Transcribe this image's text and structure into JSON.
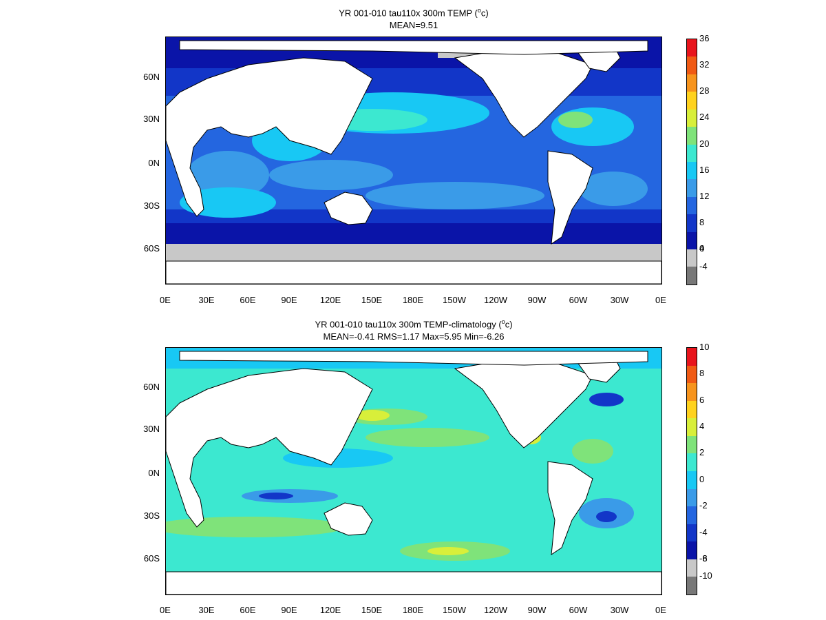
{
  "panels": [
    {
      "title": "YR 001-010 tau110x 300m TEMP",
      "unit_prefix": "(",
      "unit_sup": "o",
      "unit_suffix": "c)",
      "stats": "MEAN=9.51",
      "colorbar": {
        "labels": [
          "36",
          "32",
          "28",
          "24",
          "20",
          "16",
          "12",
          "8",
          "4",
          "0",
          "-4"
        ],
        "colors": [
          "#e8141c",
          "#f05a14",
          "#f7941d",
          "#ffd21e",
          "#d8ef3a",
          "#7fe37a",
          "#3ce8d0",
          "#18c8f4",
          "#3a9be8",
          "#2466e0",
          "#1236c8",
          "#0a14a8",
          "#c8c8c8",
          "#787878"
        ]
      }
    },
    {
      "title": "YR 001-010 tau110x 300m TEMP-climatology",
      "unit_prefix": "(",
      "unit_sup": "o",
      "unit_suffix": "c)",
      "stats": "MEAN=-0.41   RMS=1.17   Max=5.95   Min=-6.26",
      "colorbar": {
        "labels": [
          "10",
          "8",
          "6",
          "4",
          "2",
          "0",
          "-2",
          "-4",
          "-6",
          "-8",
          "-10"
        ],
        "colors": [
          "#e8141c",
          "#f05a14",
          "#f7941d",
          "#ffd21e",
          "#d8ef3a",
          "#7fe37a",
          "#3ce8d0",
          "#18c8f4",
          "#3a9be8",
          "#2466e0",
          "#1236c8",
          "#0a14a8",
          "#c8c8c8",
          "#787878"
        ]
      }
    }
  ],
  "lat_labels": [
    "60N",
    "30N",
    "0N",
    "30S",
    "60S"
  ],
  "lon_labels": [
    "0E",
    "30E",
    "60E",
    "90E",
    "120E",
    "150E",
    "180E",
    "150W",
    "120W",
    "90W",
    "60W",
    "30W",
    "0E"
  ],
  "colors": {
    "land": "#ffffff",
    "ice": "#c8c8c8",
    "coast": "#000000"
  }
}
